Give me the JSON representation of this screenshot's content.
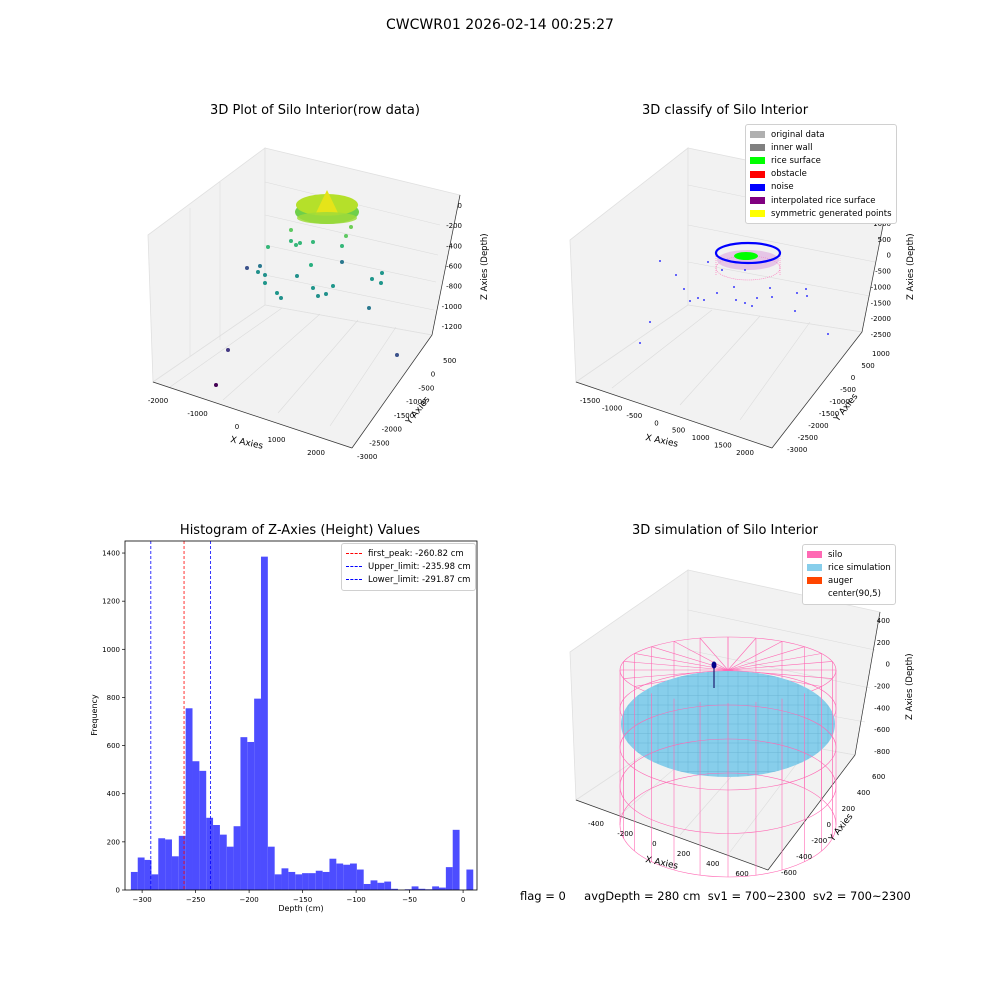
{
  "suptitle": "CWCWR01 2026-02-14 00:25:27",
  "footer": {
    "flag": "flag = 0",
    "avg_depth": "avgDepth = 280 cm",
    "sv1": "sv1 = 700~2300",
    "sv2": "sv2 = 700~2300"
  },
  "colors": {
    "original": "#b0b0b0",
    "inner_wall": "#808080",
    "rice_surface": "#00ff00",
    "obstacle": "#ff0000",
    "noise": "#0000ff",
    "interpolated": "#800080",
    "symmetric": "#ffff00",
    "hist": "#4d4dff",
    "silo": "#ff69b4",
    "rice_sim": "#87ceeb",
    "auger": "#ff4500"
  },
  "chart_data": [
    {
      "type": "scatter",
      "title": "3D Plot of Silo Interior(row data)",
      "xlabel": "X Axies",
      "ylabel": "Y Axies",
      "zlabel": "Z Axies (Depth)",
      "x_ticks": [
        "-2000",
        "-1000",
        "0",
        "1000",
        "2000"
      ],
      "y_ticks": [
        "500",
        "0",
        "-500",
        "-1000",
        "-1500",
        "-2000",
        "-2500",
        "-3000"
      ],
      "z_ticks": [
        "0",
        "-200",
        "-400",
        "-600",
        "-800",
        "-1000",
        "-1200"
      ],
      "xlim": [
        -2300,
        2300
      ],
      "ylim": [
        -3000,
        700
      ],
      "zlim": [
        -1300,
        50
      ]
    },
    {
      "type": "scatter",
      "title": "3D classify of Silo Interior",
      "xlabel": "X Axies",
      "ylabel": "Y Axies",
      "zlabel": "Z Axies (Depth)",
      "x_ticks": [
        "-1500",
        "-1000",
        "-500",
        "0",
        "500",
        "1000",
        "1500",
        "2000"
      ],
      "y_ticks": [
        "1000",
        "500",
        "0",
        "-500",
        "-1000",
        "-1500",
        "-2000",
        "-2500",
        "-3000"
      ],
      "z_ticks": [
        "1000",
        "500",
        "0",
        "-500",
        "-1000",
        "-1500",
        "-2000",
        "-2500"
      ],
      "legend": [
        {
          "label": "original data",
          "color": "#b0b0b0"
        },
        {
          "label": "inner wall",
          "color": "#808080"
        },
        {
          "label": "rice surface",
          "color": "#00ff00"
        },
        {
          "label": "obstacle",
          "color": "#ff0000"
        },
        {
          "label": "noise",
          "color": "#0000ff"
        },
        {
          "label": "interpolated rice surface",
          "color": "#800080"
        },
        {
          "label": "symmetric generated points",
          "color": "#ffff00"
        }
      ],
      "legend_placement": "upper-right"
    },
    {
      "type": "bar",
      "title": "Histogram of Z-Axies (Height) Values",
      "xlabel": "Depth (cm)",
      "ylabel": "Frequency",
      "xlim": [
        -316,
        13
      ],
      "ylim": [
        0,
        1450
      ],
      "x_ticks": [
        -300,
        -250,
        -200,
        -150,
        -100,
        -50,
        0
      ],
      "y_ticks": [
        0,
        200,
        400,
        600,
        800,
        1000,
        1200,
        1400
      ],
      "bins": {
        "start": -310.5,
        "width": 6.4,
        "counts": [
          75,
          135,
          125,
          65,
          215,
          210,
          140,
          225,
          755,
          535,
          495,
          300,
          270,
          230,
          180,
          265,
          635,
          615,
          795,
          1385,
          180,
          65,
          90,
          75,
          65,
          70,
          70,
          80,
          75,
          130,
          110,
          105,
          110,
          85,
          25,
          40,
          30,
          35,
          5,
          0,
          3,
          15,
          5,
          3,
          15,
          10,
          95,
          250,
          0,
          85
        ]
      },
      "vlines": [
        {
          "x": -260.82,
          "color": "#ff0000",
          "label": "first_peak: -260.82 cm"
        },
        {
          "x": -235.98,
          "color": "#0000ff",
          "label": "Upper_limit: -235.98 cm"
        },
        {
          "x": -291.87,
          "color": "#0000ff",
          "label": "Lower_limit: -291.87 cm"
        }
      ],
      "legend_placement": "upper-right"
    },
    {
      "type": "scatter",
      "title": "3D simulation of Silo Interior",
      "xlabel": "X Axies",
      "ylabel": "Y Axies",
      "zlabel": "Z Axies (Depth)",
      "x_ticks": [
        "-400",
        "-200",
        "0",
        "200",
        "400",
        "600"
      ],
      "y_ticks": [
        "600",
        "400",
        "200",
        "0",
        "-200",
        "-400",
        "-600"
      ],
      "z_ticks": [
        "400",
        "200",
        "0",
        "-200",
        "-400",
        "-600",
        "-800"
      ],
      "legend": [
        {
          "label": "silo",
          "color": "#ff69b4"
        },
        {
          "label": "rice simulation",
          "color": "#87ceeb"
        },
        {
          "label": "auger",
          "color": "#ff4500"
        },
        {
          "label": "center(90,5)",
          "color": ""
        }
      ],
      "legend_placement": "upper-right"
    }
  ]
}
